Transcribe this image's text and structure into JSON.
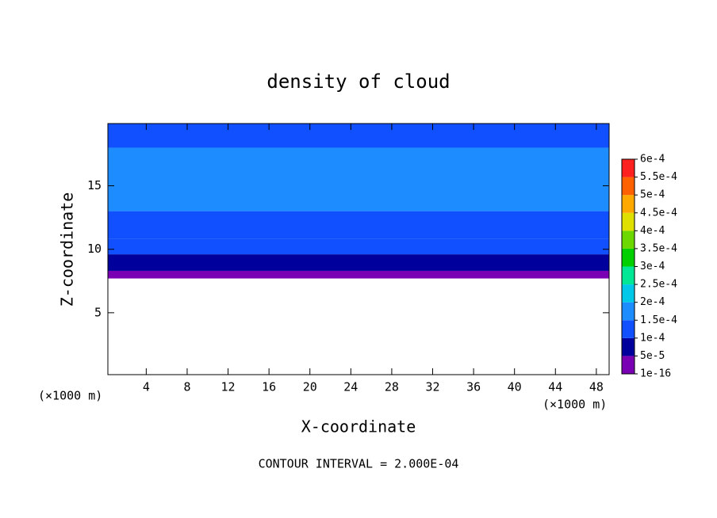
{
  "chart_data": {
    "type": "contour",
    "title": "density of cloud",
    "x_label": "X-coordinate",
    "y_label": "Z-coordinate",
    "x_unit": "(×1000 m)",
    "y_unit": "(×1000 m)",
    "footer": "CONTOUR INTERVAL = 2.000E-04",
    "xlim": [
      0.25,
      49.25
    ],
    "ylim": [
      0.125,
      19.9
    ],
    "xticks": [
      4,
      8,
      12,
      16,
      20,
      24,
      28,
      32,
      36,
      40,
      44,
      48
    ],
    "yticks": [
      5,
      10,
      15
    ],
    "profile": {
      "z": [
        7.7,
        8.3,
        9.6,
        10.8,
        13,
        18,
        19.9
      ],
      "values": [
        3e-05,
        6e-05,
        0.00011,
        0.00014,
        0.00016,
        0.00013
      ]
    },
    "colorbar": {
      "levels": [
        {
          "value": 1e-16,
          "label": "1e-16"
        },
        {
          "value": 5e-05,
          "label": "5e-5"
        },
        {
          "value": 0.0001,
          "label": "1e-4"
        },
        {
          "value": 0.00015,
          "label": "1.5e-4"
        },
        {
          "value": 0.0002,
          "label": "2e-4"
        },
        {
          "value": 0.00025,
          "label": "2.5e-4"
        },
        {
          "value": 0.0003,
          "label": "3e-4"
        },
        {
          "value": 0.00035,
          "label": "3.5e-4"
        },
        {
          "value": 0.0004,
          "label": "4e-4"
        },
        {
          "value": 0.00045,
          "label": "4.5e-4"
        },
        {
          "value": 0.0005,
          "label": "5e-4"
        },
        {
          "value": 0.00055,
          "label": "5.5e-4"
        },
        {
          "value": 0.0006,
          "label": "6e-4"
        }
      ],
      "colors": [
        "#7a00b4",
        "#00009c",
        "#1050ff",
        "#1c8cff",
        "#00c8e8",
        "#00e896",
        "#00d000",
        "#6cd800",
        "#e0e000",
        "#ffa800",
        "#ff6000",
        "#ff2020"
      ]
    }
  }
}
